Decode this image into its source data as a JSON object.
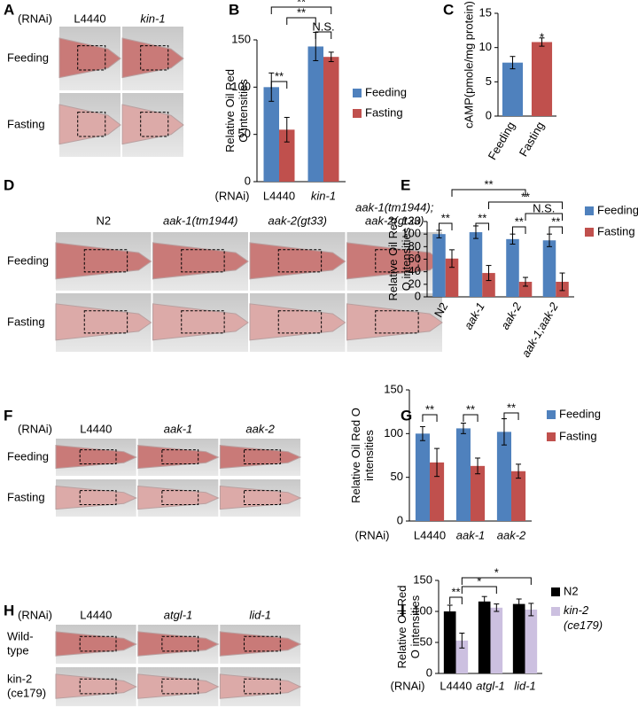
{
  "image_panels": [
    {
      "label": "A",
      "header_prefix": "(RNAi)",
      "columns": [
        [
          "L4440"
        ],
        [
          "kin-1"
        ]
      ],
      "rows": [
        [
          "Feeding"
        ],
        [
          "Fasting"
        ]
      ]
    },
    {
      "label": "D",
      "columns": [
        [
          "N2"
        ],
        [
          "aak-1(tm1944)"
        ],
        [
          "aak-2(gt33)"
        ],
        [
          "aak-1(tm1944);",
          "aak-2(gt33)"
        ]
      ],
      "rows": [
        [
          "Feeding"
        ],
        [
          "Fasting"
        ]
      ]
    },
    {
      "label": "F",
      "header_prefix": "(RNAi)",
      "columns": [
        [
          "L4440"
        ],
        [
          "aak-1"
        ],
        [
          "aak-2"
        ]
      ],
      "rows": [
        [
          "Feeding"
        ],
        [
          "Fasting"
        ]
      ]
    },
    {
      "label": "H",
      "header_prefix": "(RNAi)",
      "columns": [
        [
          "L4440"
        ],
        [
          "atgl-1"
        ],
        [
          "lid-1"
        ]
      ],
      "rows": [
        [
          "Wild-",
          "type"
        ],
        [
          "kin-2",
          "(ce179)"
        ]
      ]
    }
  ],
  "chart_data": [
    {
      "label": "B",
      "type": "bar",
      "y_label": [
        "Relative Oil Red",
        "O intensities"
      ],
      "category_prefix": "(RNAi)",
      "categories": [
        "L4440",
        "kin-1"
      ],
      "series": [
        {
          "name": "Feeding",
          "color": "#4f81bd",
          "values": [
            100,
            143
          ],
          "errors": [
            15,
            15
          ]
        },
        {
          "name": "Fasting",
          "color": "#c0504d",
          "values": [
            55,
            132
          ],
          "errors": [
            13,
            5
          ]
        }
      ],
      "ylim": [
        0,
        150
      ],
      "yticks": [
        0,
        50,
        100,
        150
      ],
      "annotations": [
        "**",
        "**",
        "**",
        "N.S."
      ]
    },
    {
      "label": "C",
      "type": "bar",
      "y_label": [
        "cAMP(pmole/mg protein)"
      ],
      "categories": [
        "Feeding",
        "Fasting"
      ],
      "values": [
        7.8,
        10.8
      ],
      "errors": [
        0.9,
        0.6
      ],
      "colors": [
        "#4f81bd",
        "#c0504d"
      ],
      "ylim": [
        0,
        15
      ],
      "yticks": [
        0,
        5,
        10,
        15
      ],
      "annotations": [
        "*"
      ]
    },
    {
      "label": "E",
      "type": "bar",
      "y_label": [
        "Relative Oil Red",
        "O intensities"
      ],
      "categories": [
        "N2",
        "aak-1",
        "aak-2",
        "aak-1;aak-2"
      ],
      "series": [
        {
          "name": "Feeding",
          "color": "#4f81bd",
          "values": [
            100,
            103,
            92,
            90
          ],
          "errors": [
            6,
            10,
            8,
            10
          ]
        },
        {
          "name": "Fasting",
          "color": "#c0504d",
          "values": [
            61,
            38,
            24,
            24
          ],
          "errors": [
            14,
            12,
            7,
            14
          ]
        }
      ],
      "ylim": [
        0,
        120
      ],
      "yticks": [
        0,
        20,
        40,
        60,
        80,
        100,
        120
      ],
      "annotations": [
        "**",
        "**",
        "**",
        "**",
        "**",
        "**",
        "N.S."
      ]
    },
    {
      "label": "G",
      "type": "bar",
      "y_label": [
        "Relative Oil Red O",
        "intensities"
      ],
      "category_prefix": "(RNAi)",
      "categories": [
        "L4440",
        "aak-1",
        "aak-2"
      ],
      "series": [
        {
          "name": "Feeding",
          "color": "#4f81bd",
          "values": [
            100,
            106,
            102
          ],
          "errors": [
            8,
            6,
            15
          ]
        },
        {
          "name": "Fasting",
          "color": "#c0504d",
          "values": [
            67,
            63,
            57
          ],
          "errors": [
            16,
            9,
            8
          ]
        }
      ],
      "ylim": [
        0,
        150
      ],
      "yticks": [
        0,
        50,
        100,
        150
      ],
      "annotations": [
        "**",
        "**",
        "**"
      ]
    },
    {
      "label": "I",
      "type": "bar",
      "y_label": [
        "Relative Oil Red",
        "O intensities"
      ],
      "category_prefix": "(RNAi)",
      "categories": [
        "L4440",
        "atgl-1",
        "lid-1"
      ],
      "series": [
        {
          "name": "N2",
          "color": "#000000",
          "values": [
            100,
            116,
            112
          ],
          "errors": [
            10,
            8,
            8
          ]
        },
        {
          "name": "kin-2 (ce179)",
          "color": "#ccc0e0",
          "values": [
            53,
            106,
            103
          ],
          "errors": [
            12,
            6,
            10
          ]
        }
      ],
      "ylim": [
        0,
        150
      ],
      "yticks": [
        0,
        50,
        100,
        150
      ],
      "annotations": [
        "**",
        "*",
        "*"
      ]
    }
  ]
}
